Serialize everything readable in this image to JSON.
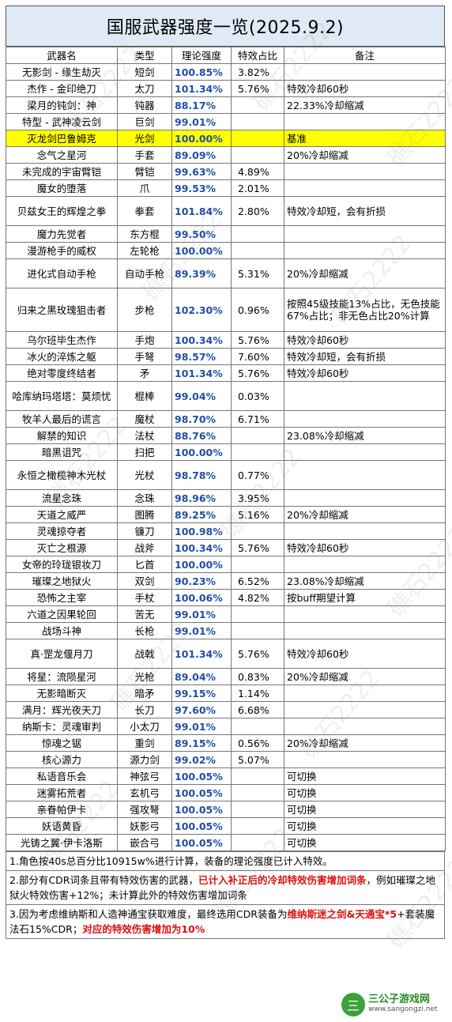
{
  "title": "国服武器强度一览(2025.9.2)",
  "headers": [
    "武器名",
    "类型",
    "理论强度",
    "特效占比",
    "备注"
  ],
  "rows": [
    {
      "name": "无影剑 - 缘生劫灭",
      "type": "短剑",
      "strength": "100.85%",
      "effect": "3.82%",
      "note": ""
    },
    {
      "name": "杰作 - 金印绝刀",
      "type": "太刀",
      "strength": "101.34%",
      "effect": "5.76%",
      "note": "特效冷却60秒"
    },
    {
      "name": "梁月的钝剑：神",
      "type": "钝器",
      "strength": "88.17%",
      "effect": "",
      "note": "22.33%冷却缩减"
    },
    {
      "name": "特型 - 武神凌云剑",
      "type": "巨剑",
      "strength": "99.01%",
      "effect": "",
      "note": ""
    },
    {
      "name": "灭龙剑巴鲁姆克",
      "type": "光剑",
      "strength": "100.00%",
      "effect": "",
      "note": "基准",
      "highlight": true
    },
    {
      "name": "念气之星河",
      "type": "手套",
      "strength": "89.09%",
      "effect": "",
      "note": "20%冷却缩减"
    },
    {
      "name": "未完成的宇宙臂铠",
      "type": "臂铠",
      "strength": "99.63%",
      "effect": "4.89%",
      "note": ""
    },
    {
      "name": "魔女的堕落",
      "type": "爪",
      "strength": "99.53%",
      "effect": "2.01%",
      "note": ""
    },
    {
      "name": "贝兹女王的辉煌之拳",
      "type": "拳套",
      "strength": "101.84%",
      "effect": "2.80%",
      "note": "特效冷却短，会有折损",
      "lines": 2
    },
    {
      "name": "魔力先觉者",
      "type": "东方棍",
      "strength": "99.50%",
      "effect": "",
      "note": ""
    },
    {
      "name": "漫游枪手的威权",
      "type": "左轮枪",
      "strength": "100.00%",
      "effect": "",
      "note": ""
    },
    {
      "name": "进化式自动手枪",
      "type": "自动手枪",
      "strength": "89.39%",
      "effect": "5.31%",
      "note": "20%冷却缩减",
      "lines": 2
    },
    {
      "name": "归来之黑玫瑰狙击者",
      "type": "步枪",
      "strength": "102.30%",
      "effect": "0.96%",
      "note": "按照45级技能13%占比，无色技能67%占比；非无色占比20%计算",
      "lines": 3
    },
    {
      "name": "乌尔班毕生杰作",
      "type": "手炮",
      "strength": "100.34%",
      "effect": "5.76%",
      "note": "特效冷却60秒"
    },
    {
      "name": "冰火的淬炼之躯",
      "type": "手弩",
      "strength": "98.57%",
      "effect": "7.60%",
      "note": "特效冷却短，会有折损"
    },
    {
      "name": "绝对零度终结者",
      "type": "矛",
      "strength": "101.34%",
      "effect": "5.76%",
      "note": "特效冷却60秒"
    },
    {
      "name": "哈库纳玛塔塔：莫烦忧",
      "type": "棍棒",
      "strength": "99.04%",
      "effect": "0.03%",
      "note": "",
      "lines": 2
    },
    {
      "name": "牧羊人最后的谎言",
      "type": "魔杖",
      "strength": "98.70%",
      "effect": "6.71%",
      "note": ""
    },
    {
      "name": "解禁的知识",
      "type": "法杖",
      "strength": "88.76%",
      "effect": "",
      "note": "23.08%冷却缩减"
    },
    {
      "name": "暗黑诅咒",
      "type": "扫把",
      "strength": "100.00%",
      "effect": "",
      "note": ""
    },
    {
      "name": "永恒之橄榄神木光杖",
      "type": "光杖",
      "strength": "98.78%",
      "effect": "0.77%",
      "note": "",
      "lines": 2
    },
    {
      "name": "流星念珠",
      "type": "念珠",
      "strength": "98.96%",
      "effect": "3.95%",
      "note": ""
    },
    {
      "name": "天道之威严",
      "type": "图腾",
      "strength": "89.25%",
      "effect": "5.16%",
      "note": "20%冷却缩减"
    },
    {
      "name": "灵魂掠夺者",
      "type": "镰刀",
      "strength": "100.98%",
      "effect": "",
      "note": ""
    },
    {
      "name": "灭亡之根源",
      "type": "战斧",
      "strength": "100.34%",
      "effect": "5.76%",
      "note": "特效冷却60秒"
    },
    {
      "name": "女帝的玲珑银妆刀",
      "type": "匕首",
      "strength": "100.00%",
      "effect": "",
      "note": ""
    },
    {
      "name": "璀璨之地狱火",
      "type": "双剑",
      "strength": "90.23%",
      "effect": "6.52%",
      "note": "23.08%冷却缩减"
    },
    {
      "name": "恐怖之主宰",
      "type": "手杖",
      "strength": "100.06%",
      "effect": "4.82%",
      "note": "按buff期望计算"
    },
    {
      "name": "六道之因果轮回",
      "type": "苦无",
      "strength": "99.01%",
      "effect": "",
      "note": ""
    },
    {
      "name": "战场斗神",
      "type": "长枪",
      "strength": "99.01%",
      "effect": "",
      "note": ""
    },
    {
      "name": "真·罡龙偃月刀",
      "type": "战戟",
      "strength": "101.34%",
      "effect": "5.76%",
      "note": "特效冷却60秒",
      "lines": 2
    },
    {
      "name": "将星：流陨星河",
      "type": "光枪",
      "strength": "89.04%",
      "effect": "0.83%",
      "note": "20%冷却缩减"
    },
    {
      "name": "无影暗断灭",
      "type": "暗矛",
      "strength": "99.15%",
      "effect": "1.14%",
      "note": ""
    },
    {
      "name": "满月：辉光夜天刀",
      "type": "长刀",
      "strength": "97.60%",
      "effect": "6.68%",
      "note": ""
    },
    {
      "name": "纳斯卡：灵魂审判",
      "type": "小太刀",
      "strength": "99.01%",
      "effect": "",
      "note": ""
    },
    {
      "name": "惊魂之锯",
      "type": "重剑",
      "strength": "89.15%",
      "effect": "0.56%",
      "note": "20%冷却缩减"
    },
    {
      "name": "核心源力",
      "type": "源力剑",
      "strength": "99.02%",
      "effect": "5.07%",
      "note": ""
    },
    {
      "name": "私语音乐会",
      "type": "神弦弓",
      "strength": "100.05%",
      "effect": "",
      "note": "可切换"
    },
    {
      "name": "迷雾拓荒者",
      "type": "玄机弓",
      "strength": "100.05%",
      "effect": "",
      "note": "可切换"
    },
    {
      "name": "亲眷帕伊卡",
      "type": "强攻弩",
      "strength": "100.05%",
      "effect": "",
      "note": "可切换"
    },
    {
      "name": "妖语黄昏",
      "type": "妖影弓",
      "strength": "100.05%",
      "effect": "",
      "note": "可切换"
    },
    {
      "name": "光铸之翼·伊卡洛斯",
      "type": "嵌合弓",
      "strength": "100.05%",
      "effect": "",
      "note": "可切换"
    }
  ],
  "notes": {
    "n1": "1.角色按40s总百分比10915w%进行计算，装备的理论强度已计入特效。",
    "n2a": "2.部分有CDR词条且带有特效伤害的武器，",
    "n2b": "已计入补正后的冷却特效伤害增加词条",
    "n2c": "，例如璀璨之地狱火特效伤害+12%；未计算此外的特效伤害增加词条",
    "n3a": "3.因为考虑维纳斯和人造神通宝获取难度，最终选用CDR装备为",
    "n3b": "维纳斯迷之剑&天通宝*5",
    "n3c": "+套装魔法石15%CDR；",
    "n3d": "对应的特效伤害增加为10%"
  },
  "watermark": "礁石2222",
  "logo": {
    "main": "三公子游戏网",
    "url": "www.sangongzi.net",
    "badge": "三"
  }
}
